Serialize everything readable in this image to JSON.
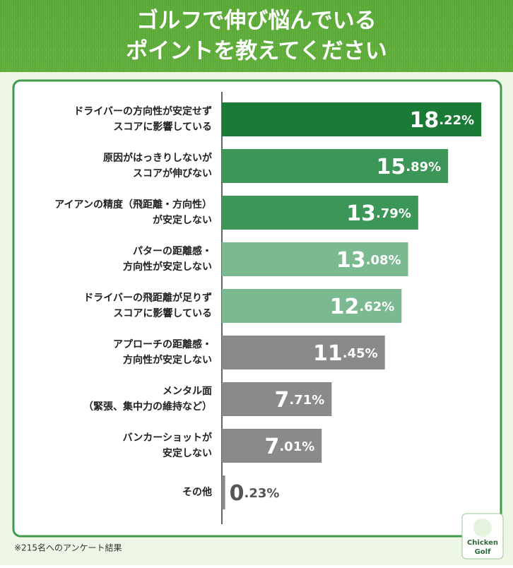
{
  "chart_data": {
    "type": "barh",
    "title": [
      "ゴルフで伸び悩んでいる",
      "ポイントを教えてください"
    ],
    "categories": [
      "ドライバーの方向性が安定せず\nスコアに影響している",
      "原因がはっきりしないが\nスコアが伸びない",
      "アイアンの精度（飛距離・方向性）\nが安定しない",
      "パターの距離感・\n方向性が安定しない",
      "ドライバーの飛距離が足りず\nスコアに影響している",
      "アプローチの距離感・\n方向性が安定しない",
      "メンタル面\n（緊張、集中力の維持など）",
      "バンカーショットが\n安定しない",
      "その他"
    ],
    "values": [
      18.22,
      15.89,
      13.79,
      13.08,
      12.62,
      11.45,
      7.71,
      7.01,
      0.23
    ],
    "value_labels": [
      "18.22%",
      "15.89%",
      "13.79%",
      "13.08%",
      "12.62%",
      "11.45%",
      "7.71%",
      "7.01%",
      "0.23%"
    ],
    "colors": [
      "#1b7a36",
      "#3b9658",
      "#3b9658",
      "#7bb991",
      "#7bb991",
      "#8a8a8a",
      "#8a8a8a",
      "#8a8a8a",
      "#8a8a8a"
    ],
    "xlim": [
      0,
      20
    ],
    "footnote": "※215名へのアンケート結果",
    "logo": [
      "Chicken",
      "Golf"
    ]
  }
}
